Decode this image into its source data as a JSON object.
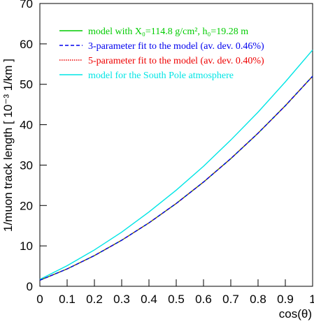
{
  "chart_data": {
    "type": "line",
    "x_label": "cos(θ)",
    "y_label": "1/muon track length [ 10⁻³ 1/km ]",
    "x": [
      0,
      0.1,
      0.2,
      0.3,
      0.4,
      0.5,
      0.6,
      0.7,
      0.8,
      0.9,
      1
    ],
    "series": [
      {
        "name": "model with X₀=114.8 g/cm², h₀=19.28 m",
        "color": "#00cc00",
        "style": "solid",
        "values": [
          1.5,
          4.3,
          7.6,
          11.4,
          15.7,
          20.5,
          25.8,
          31.6,
          37.9,
          44.7,
          52
        ]
      },
      {
        "name": "3-parameter fit to the model (av. dev.  0.46%)",
        "color": "#0000ee",
        "style": "dashed",
        "values": [
          1.5,
          4.3,
          7.6,
          11.4,
          15.7,
          20.5,
          25.8,
          31.6,
          37.9,
          44.7,
          52
        ]
      },
      {
        "name": "5-parameter fit to the model (av. dev.  0.40%)",
        "color": "#ee0000",
        "style": "dotted",
        "values": [
          1.5,
          4.3,
          7.6,
          11.4,
          15.7,
          20.5,
          25.8,
          31.6,
          37.9,
          44.7,
          52
        ]
      },
      {
        "name": "model for the South Pole atmosphere",
        "color": "#00e5e5",
        "style": "solid",
        "values": [
          1.7,
          5.1,
          9.0,
          13.4,
          18.4,
          23.8,
          29.7,
          36.2,
          43.1,
          50.6,
          58.5
        ]
      }
    ],
    "xlim": [
      0,
      1
    ],
    "xticks": [
      0,
      0.1,
      0.2,
      0.3,
      0.4,
      0.5,
      0.6,
      0.7,
      0.8,
      0.9,
      1
    ],
    "ylim": [
      0,
      70
    ],
    "yticks": [
      0,
      10,
      20,
      30,
      40,
      50,
      60,
      70
    ],
    "legend": "top-left"
  }
}
